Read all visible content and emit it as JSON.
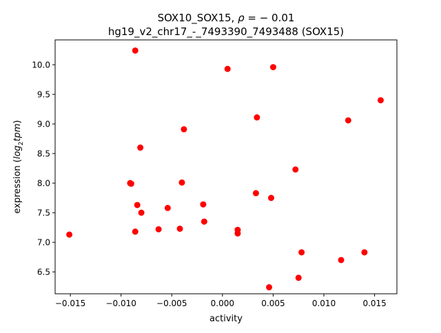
{
  "chart_data": {
    "type": "scatter",
    "title_line1_prefix": "SOX10_SOX15, ",
    "title_rho_symbol": "ρ",
    "title_rho_value": " = − 0.01",
    "title_line2": "hg19_v2_chr17_-_7493390_7493488 (SOX15)",
    "xlabel": "activity",
    "ylabel_prefix": "expression (",
    "ylabel_log": "log",
    "ylabel_sub": "2",
    "ylabel_tpm": "tpm",
    "ylabel_suffix": ")",
    "xlim": [
      -0.0165,
      0.0172
    ],
    "ylim": [
      6.13,
      10.42
    ],
    "xticks": [
      -0.015,
      -0.01,
      -0.005,
      0.0,
      0.005,
      0.01,
      0.015
    ],
    "xtick_labels": [
      "−0.015",
      "−0.010",
      "−0.005",
      "0.000",
      "0.005",
      "0.010",
      "0.015"
    ],
    "yticks": [
      6.5,
      7.0,
      7.5,
      8.0,
      8.5,
      9.0,
      9.5,
      10.0
    ],
    "ytick_labels": [
      "6.5",
      "7.0",
      "7.5",
      "8.0",
      "8.5",
      "9.0",
      "9.5",
      "10.0"
    ],
    "marker_color": "#ff0000",
    "grid": false,
    "points": [
      {
        "x": -0.0151,
        "y": 7.13
      },
      {
        "x": -0.0091,
        "y": 8.0
      },
      {
        "x": -0.009,
        "y": 7.99
      },
      {
        "x": -0.0086,
        "y": 10.24
      },
      {
        "x": -0.0086,
        "y": 7.18
      },
      {
        "x": -0.0084,
        "y": 7.63
      },
      {
        "x": -0.0081,
        "y": 8.6
      },
      {
        "x": -0.008,
        "y": 7.5
      },
      {
        "x": -0.0063,
        "y": 7.22
      },
      {
        "x": -0.0054,
        "y": 7.58
      },
      {
        "x": -0.0042,
        "y": 7.23
      },
      {
        "x": -0.004,
        "y": 8.01
      },
      {
        "x": -0.0038,
        "y": 8.91
      },
      {
        "x": -0.0019,
        "y": 7.64
      },
      {
        "x": -0.0018,
        "y": 7.35
      },
      {
        "x": 0.0005,
        "y": 9.93
      },
      {
        "x": 0.0015,
        "y": 7.21
      },
      {
        "x": 0.0015,
        "y": 7.15
      },
      {
        "x": 0.0033,
        "y": 7.83
      },
      {
        "x": 0.0034,
        "y": 9.11
      },
      {
        "x": 0.0046,
        "y": 6.24
      },
      {
        "x": 0.0048,
        "y": 7.75
      },
      {
        "x": 0.005,
        "y": 9.96
      },
      {
        "x": 0.0072,
        "y": 8.23
      },
      {
        "x": 0.0075,
        "y": 6.4
      },
      {
        "x": 0.0078,
        "y": 6.83
      },
      {
        "x": 0.0117,
        "y": 6.7
      },
      {
        "x": 0.0124,
        "y": 9.06
      },
      {
        "x": 0.014,
        "y": 6.83
      },
      {
        "x": 0.0156,
        "y": 9.4
      }
    ]
  }
}
